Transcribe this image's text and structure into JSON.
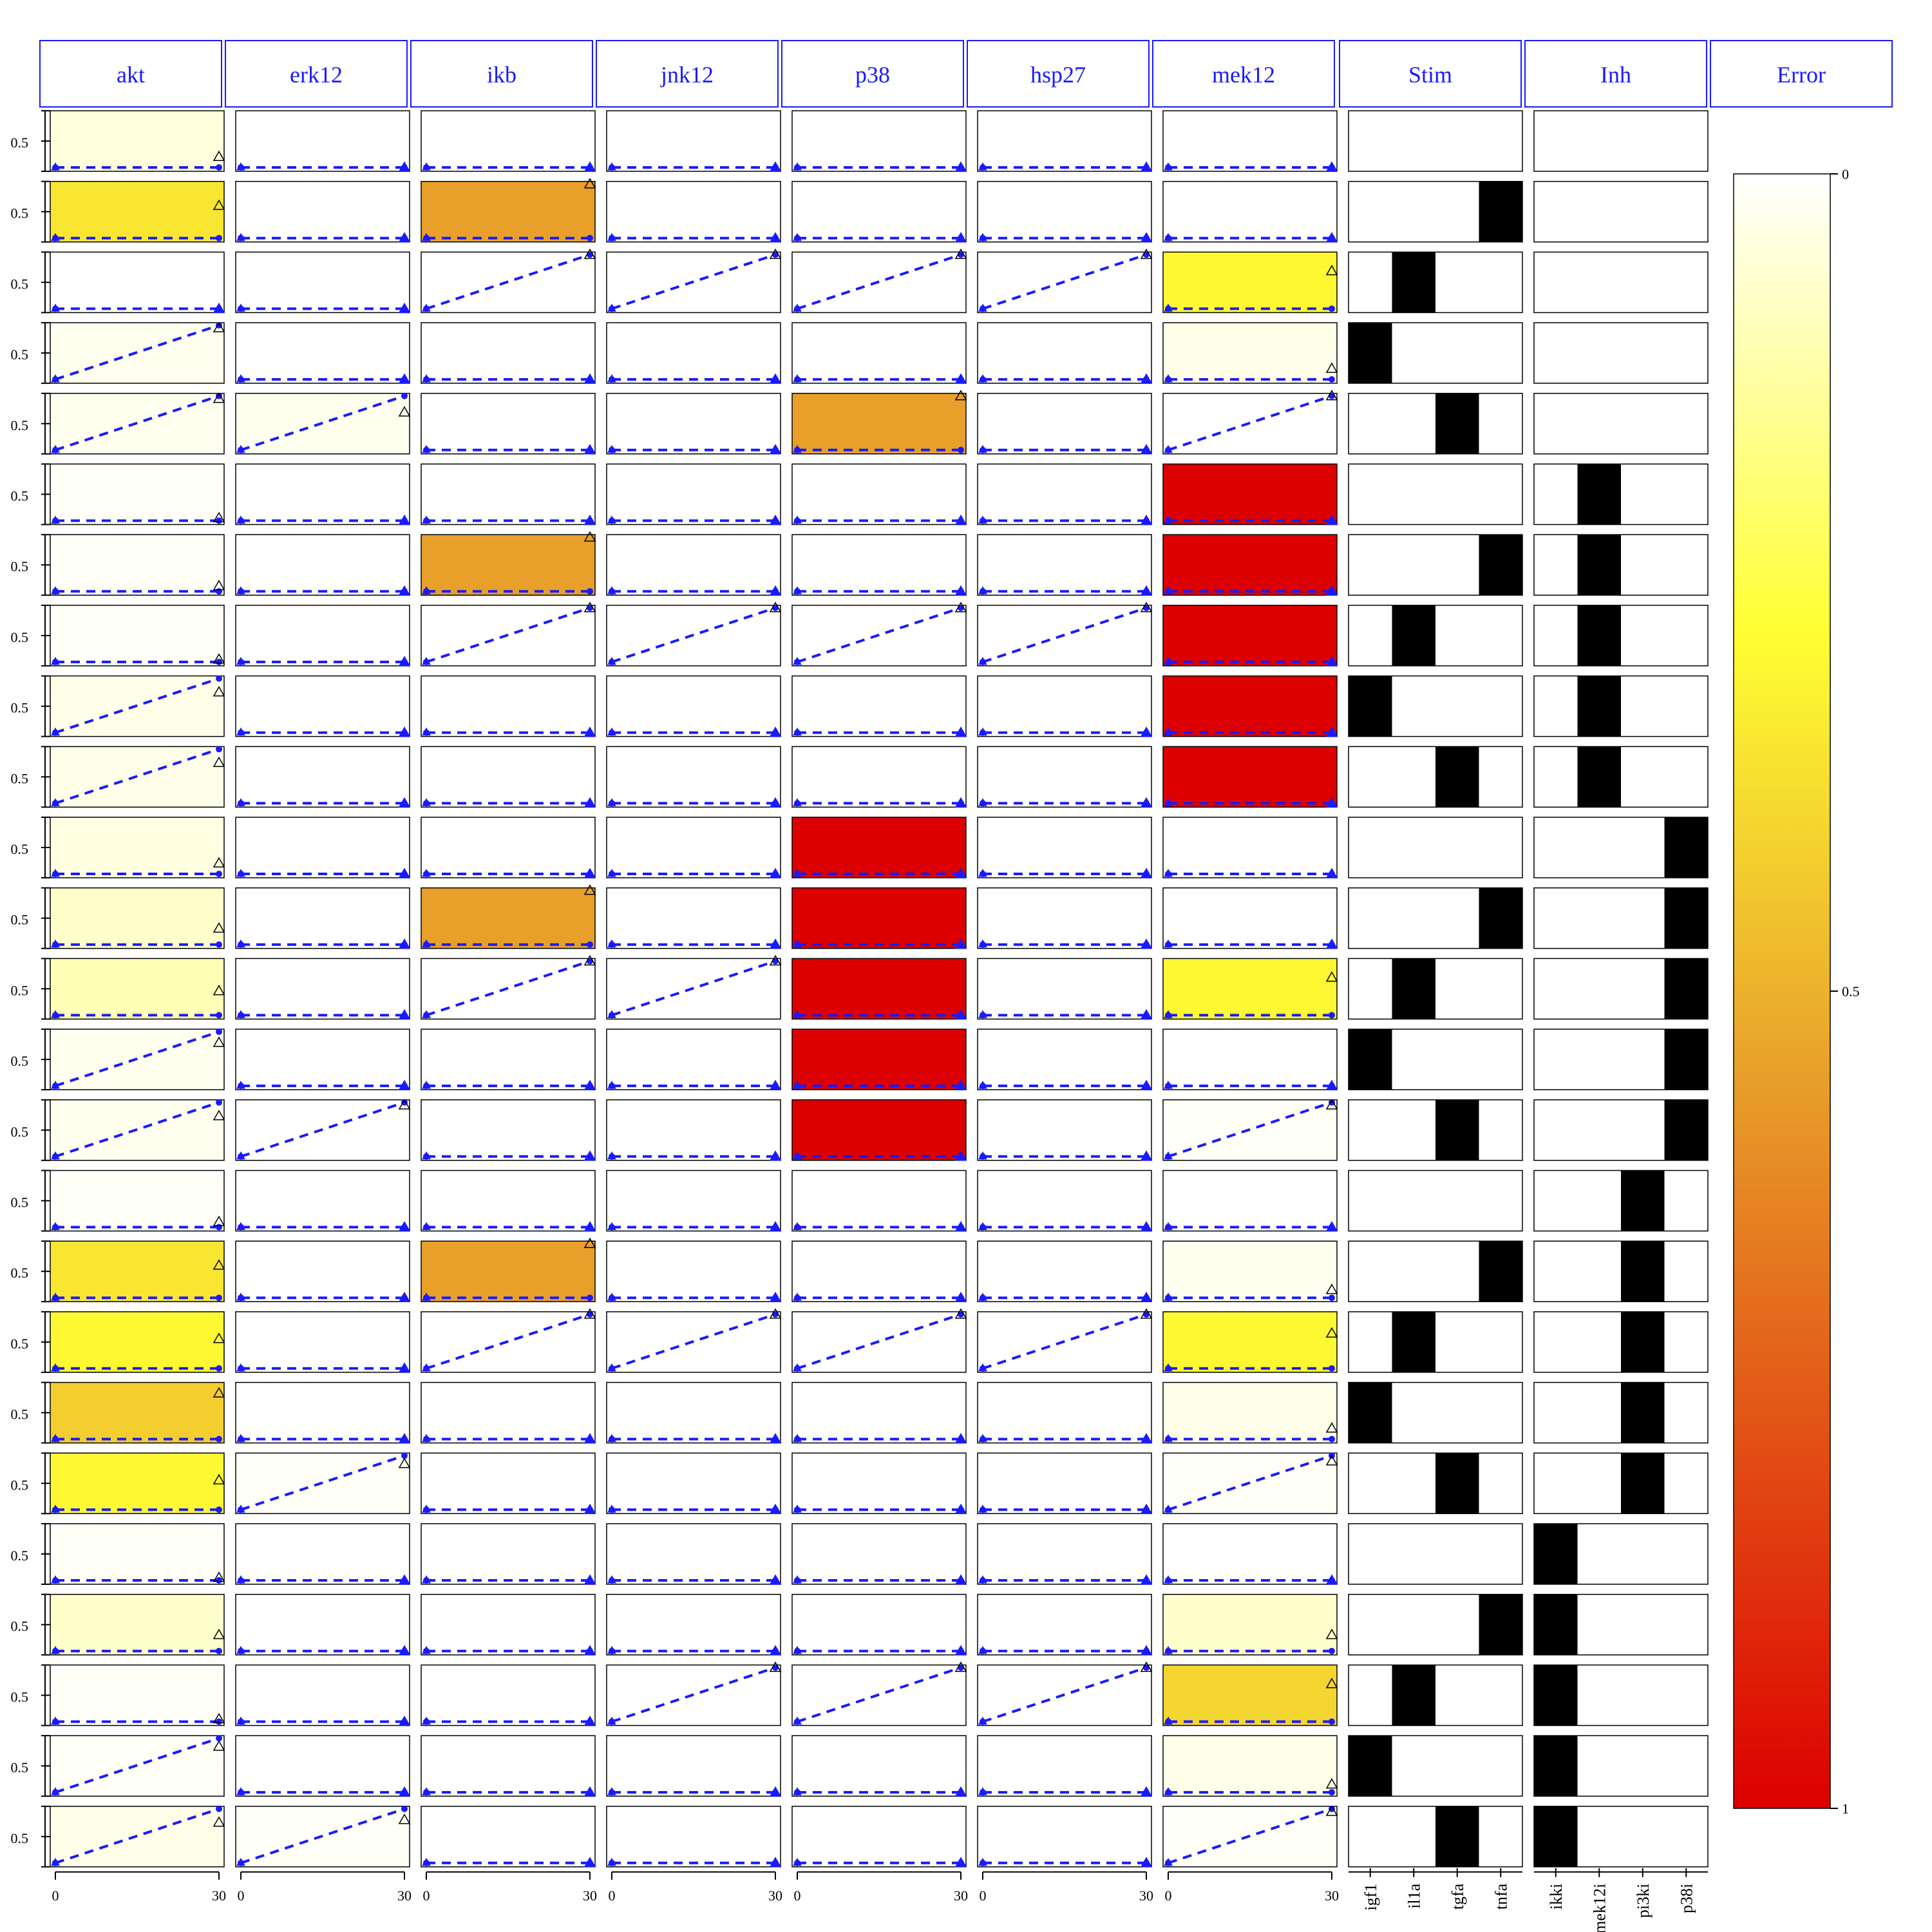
{
  "chart_data": {
    "type": "heatmap",
    "title": "",
    "columns": [
      "akt",
      "erk12",
      "ikb",
      "jnk12",
      "p38",
      "hsp27",
      "mek12"
    ],
    "stim_header": "Stim",
    "inh_header": "Inh",
    "error_header": "Error",
    "stim_labels": [
      "igf1",
      "il1a",
      "tgfa",
      "tnfa"
    ],
    "inh_labels": [
      "ikki",
      "mek12i",
      "pi3ki",
      "p38i"
    ],
    "x_ticks": [
      "0",
      "30"
    ],
    "y_tick": "0.5",
    "colorbar_ticks": [
      {
        "label": "0",
        "value": 0
      },
      {
        "label": "0.5",
        "value": 0.5
      },
      {
        "label": "1",
        "value": 1
      }
    ],
    "colorbar_colors": [
      "#ffffff",
      "#ffff33",
      "#e8a02a",
      "#dc0000"
    ],
    "line_color": "#1a1aff",
    "header_color": "#1a1aff",
    "error_rows": [
      [
        0.05,
        0,
        0,
        0,
        0,
        0,
        0
      ],
      [
        0.35,
        0,
        0.55,
        0,
        0,
        0,
        0
      ],
      [
        0,
        0,
        0,
        0,
        0,
        0,
        0.3
      ],
      [
        0.02,
        0,
        0,
        0,
        0,
        0,
        0.03
      ],
      [
        0.02,
        0.02,
        0,
        0,
        0.55,
        0,
        0
      ],
      [
        0.01,
        0,
        0,
        0,
        0,
        0,
        1
      ],
      [
        0.01,
        0,
        0.55,
        0,
        0,
        0,
        1
      ],
      [
        0.01,
        0,
        0,
        0,
        0,
        0,
        1
      ],
      [
        0.03,
        0,
        0,
        0,
        0,
        0,
        1
      ],
      [
        0.03,
        0,
        0,
        0,
        0,
        0,
        1
      ],
      [
        0.04,
        0,
        0,
        0,
        1,
        0,
        0
      ],
      [
        0.07,
        0,
        0.55,
        0,
        1,
        0,
        0
      ],
      [
        0.1,
        0,
        0,
        0,
        1,
        0,
        0.3
      ],
      [
        0.02,
        0,
        0,
        0,
        1,
        0,
        0
      ],
      [
        0.02,
        0,
        0,
        0,
        1,
        0,
        0.01
      ],
      [
        0.01,
        0,
        0,
        0,
        0,
        0,
        0
      ],
      [
        0.35,
        0,
        0.55,
        0,
        0,
        0,
        0.02
      ],
      [
        0.3,
        0,
        0,
        0,
        0,
        0,
        0.3
      ],
      [
        0.42,
        0,
        0,
        0,
        0,
        0,
        0.03
      ],
      [
        0.3,
        0.01,
        0,
        0,
        0,
        0,
        0.01
      ],
      [
        0.01,
        0,
        0,
        0,
        0,
        0,
        0
      ],
      [
        0.07,
        0,
        0,
        0,
        0,
        0,
        0.07
      ],
      [
        0.01,
        0,
        0,
        0,
        0,
        0,
        0.4
      ],
      [
        0.01,
        0,
        0,
        0,
        0,
        0,
        0.03
      ],
      [
        0.03,
        0.01,
        0,
        0,
        0,
        0,
        0.01
      ]
    ],
    "sim_end": [
      [
        0,
        0,
        0,
        0,
        0,
        0,
        0
      ],
      [
        0,
        0,
        0,
        0,
        0,
        0,
        0
      ],
      [
        0,
        0,
        1,
        1,
        1,
        1,
        0
      ],
      [
        1,
        0,
        0,
        0,
        0,
        0,
        0
      ],
      [
        1,
        1,
        0,
        0,
        0,
        0,
        1
      ],
      [
        0,
        0,
        0,
        0,
        0,
        0,
        0
      ],
      [
        0,
        0,
        0,
        0,
        0,
        0,
        0
      ],
      [
        0,
        0,
        1,
        1,
        1,
        1,
        0
      ],
      [
        1,
        0,
        0,
        0,
        0,
        0,
        0
      ],
      [
        1,
        0,
        0,
        0,
        0,
        0,
        0
      ],
      [
        0,
        0,
        0,
        0,
        0,
        0,
        0
      ],
      [
        0,
        0,
        0,
        0,
        0,
        0,
        0
      ],
      [
        0,
        0,
        1,
        1,
        0,
        0,
        0
      ],
      [
        1,
        0,
        0,
        0,
        0,
        0,
        0
      ],
      [
        1,
        1,
        0,
        0,
        0,
        0,
        1
      ],
      [
        0,
        0,
        0,
        0,
        0,
        0,
        0
      ],
      [
        0,
        0,
        0,
        0,
        0,
        0,
        0
      ],
      [
        0,
        0,
        1,
        1,
        1,
        1,
        0
      ],
      [
        0,
        0,
        0,
        0,
        0,
        0,
        0
      ],
      [
        0,
        1,
        0,
        0,
        0,
        0,
        1
      ],
      [
        0,
        0,
        0,
        0,
        0,
        0,
        0
      ],
      [
        0,
        0,
        0,
        0,
        0,
        0,
        0
      ],
      [
        0,
        0,
        0,
        1,
        1,
        1,
        0
      ],
      [
        1,
        0,
        0,
        0,
        0,
        0,
        0
      ],
      [
        1,
        1,
        0,
        0,
        0,
        0,
        1
      ]
    ],
    "data_end": [
      [
        0.2,
        0,
        0,
        0,
        0,
        0,
        0
      ],
      [
        0.6,
        0,
        1,
        0,
        0,
        0,
        0
      ],
      [
        0,
        0,
        1,
        1,
        1,
        1,
        0.7
      ],
      [
        0.95,
        0,
        0,
        0,
        0,
        0,
        0.2
      ],
      [
        0.95,
        0.7,
        0,
        0,
        1,
        0,
        1
      ],
      [
        0.05,
        0,
        0,
        0,
        0,
        0,
        0
      ],
      [
        0.1,
        0,
        1,
        0,
        0,
        0,
        0
      ],
      [
        0.05,
        0,
        1,
        1,
        1,
        1,
        0
      ],
      [
        0.75,
        0,
        0,
        0,
        0,
        0,
        0
      ],
      [
        0.75,
        0,
        0,
        0,
        0,
        0,
        0
      ],
      [
        0.2,
        0,
        0,
        0,
        0,
        0,
        0
      ],
      [
        0.3,
        0,
        1,
        0,
        0,
        0,
        0
      ],
      [
        0.45,
        0,
        1,
        1,
        0,
        0,
        0.7
      ],
      [
        0.8,
        0,
        0,
        0,
        0,
        0,
        0
      ],
      [
        0.75,
        0.95,
        0,
        0,
        0,
        0,
        0.95
      ],
      [
        0.1,
        0,
        0,
        0,
        0,
        0,
        0
      ],
      [
        0.6,
        0,
        1,
        0,
        0,
        0,
        0.15
      ],
      [
        0.55,
        0,
        1,
        1,
        1,
        1,
        0.65
      ],
      [
        0.85,
        0,
        0,
        0,
        0,
        0,
        0.2
      ],
      [
        0.55,
        0.85,
        0,
        0,
        0,
        0,
        0.9
      ],
      [
        0.05,
        0,
        0,
        0,
        0,
        0,
        0
      ],
      [
        0.3,
        0,
        0,
        0,
        0,
        0,
        0.3
      ],
      [
        0.05,
        0,
        0,
        1,
        1,
        1,
        0.7
      ],
      [
        0.85,
        0,
        0,
        0,
        0,
        0,
        0.15
      ],
      [
        0.75,
        0.8,
        0,
        0,
        0,
        0,
        0.95
      ]
    ],
    "stim_rows": [
      [
        0,
        0,
        0,
        0
      ],
      [
        0,
        0,
        0,
        1
      ],
      [
        0,
        1,
        0,
        0
      ],
      [
        1,
        0,
        0,
        0
      ],
      [
        0,
        0,
        1,
        0
      ],
      [
        0,
        0,
        0,
        0
      ],
      [
        0,
        0,
        0,
        1
      ],
      [
        0,
        1,
        0,
        0
      ],
      [
        1,
        0,
        0,
        0
      ],
      [
        0,
        0,
        1,
        0
      ],
      [
        0,
        0,
        0,
        0
      ],
      [
        0,
        0,
        0,
        1
      ],
      [
        0,
        1,
        0,
        0
      ],
      [
        1,
        0,
        0,
        0
      ],
      [
        0,
        0,
        1,
        0
      ],
      [
        0,
        0,
        0,
        0
      ],
      [
        0,
        0,
        0,
        1
      ],
      [
        0,
        1,
        0,
        0
      ],
      [
        1,
        0,
        0,
        0
      ],
      [
        0,
        0,
        1,
        0
      ],
      [
        0,
        0,
        0,
        0
      ],
      [
        0,
        0,
        0,
        1
      ],
      [
        0,
        1,
        0,
        0
      ],
      [
        1,
        0,
        0,
        0
      ],
      [
        0,
        0,
        1,
        0
      ]
    ],
    "inh_rows": [
      [
        0,
        0,
        0,
        0
      ],
      [
        0,
        0,
        0,
        0
      ],
      [
        0,
        0,
        0,
        0
      ],
      [
        0,
        0,
        0,
        0
      ],
      [
        0,
        0,
        0,
        0
      ],
      [
        0,
        1,
        0,
        0
      ],
      [
        0,
        1,
        0,
        0
      ],
      [
        0,
        1,
        0,
        0
      ],
      [
        0,
        1,
        0,
        0
      ],
      [
        0,
        1,
        0,
        0
      ],
      [
        0,
        0,
        0,
        1
      ],
      [
        0,
        0,
        0,
        1
      ],
      [
        0,
        0,
        0,
        1
      ],
      [
        0,
        0,
        0,
        1
      ],
      [
        0,
        0,
        0,
        1
      ],
      [
        0,
        0,
        1,
        0
      ],
      [
        0,
        0,
        1,
        0
      ],
      [
        0,
        0,
        1,
        0
      ],
      [
        0,
        0,
        1,
        0
      ],
      [
        0,
        0,
        1,
        0
      ],
      [
        1,
        0,
        0,
        0
      ],
      [
        1,
        0,
        0,
        0
      ],
      [
        1,
        0,
        0,
        0
      ],
      [
        1,
        0,
        0,
        0
      ],
      [
        1,
        0,
        0,
        0
      ]
    ]
  }
}
